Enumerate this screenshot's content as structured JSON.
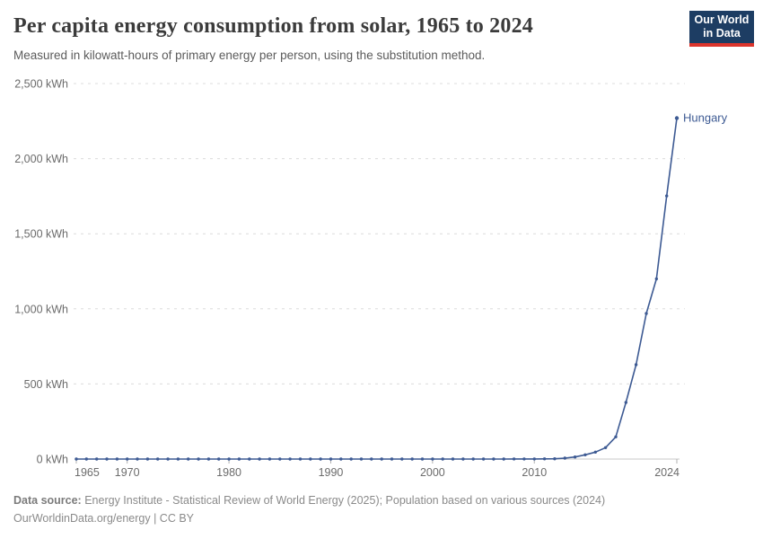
{
  "header": {
    "title": "Per capita energy consumption from solar, 1965 to 2024",
    "subtitle": "Measured in kilowatt-hours of primary energy per person, using the substitution method.",
    "logo": {
      "line1": "Our World",
      "line2": "in Data"
    }
  },
  "chart_data": {
    "type": "line",
    "title": "Per capita energy consumption from solar, 1965 to 2024",
    "xlabel": "",
    "ylabel": "",
    "xlim": [
      1965,
      2024
    ],
    "ylim": [
      0,
      2500
    ],
    "grid": "horizontal-dashed",
    "legend_position": "end-of-line-label",
    "x_ticks": [
      1965,
      1970,
      1980,
      1990,
      2000,
      2010,
      2024
    ],
    "x_tick_labels": [
      "1965",
      "1970",
      "1980",
      "1990",
      "2000",
      "2010",
      "2024"
    ],
    "y_ticks": [
      0,
      500,
      1000,
      1500,
      2000,
      2500
    ],
    "y_tick_labels": [
      "0 kWh",
      "500 kWh",
      "1,000 kWh",
      "1,500 kWh",
      "2,000 kWh",
      "2,500 kWh"
    ],
    "end_label": "Hungary",
    "series": [
      {
        "name": "Hungary",
        "color": "#3d5a93",
        "x": [
          1965,
          1966,
          1967,
          1968,
          1969,
          1970,
          1971,
          1972,
          1973,
          1974,
          1975,
          1976,
          1977,
          1978,
          1979,
          1980,
          1981,
          1982,
          1983,
          1984,
          1985,
          1986,
          1987,
          1988,
          1989,
          1990,
          1991,
          1992,
          1993,
          1994,
          1995,
          1996,
          1997,
          1998,
          1999,
          2000,
          2001,
          2002,
          2003,
          2004,
          2005,
          2006,
          2007,
          2008,
          2009,
          2010,
          2011,
          2012,
          2013,
          2014,
          2015,
          2016,
          2017,
          2018,
          2019,
          2020,
          2021,
          2022,
          2023,
          2024
        ],
        "values": [
          0,
          0,
          0,
          0,
          0,
          0,
          0,
          0,
          0,
          0,
          0,
          0,
          0,
          0,
          0,
          0,
          0,
          0,
          0,
          0,
          0,
          0,
          0,
          0,
          0,
          0,
          0,
          0,
          0,
          0,
          0,
          0,
          0,
          0,
          0,
          0,
          0,
          0,
          0,
          0,
          0.1,
          0.1,
          0.2,
          0.3,
          0.4,
          0.6,
          1,
          2,
          6,
          14,
          28,
          46,
          76,
          148,
          377,
          628,
          969,
          1200,
          1752,
          2270
        ]
      }
    ]
  },
  "footer": {
    "source_label": "Data source:",
    "source_text": "Energy Institute - Statistical Review of World Energy (2025); Population based on various sources (2024)",
    "note_text": "OurWorldinData.org/energy | CC BY"
  },
  "colors": {
    "line": "#3d5a93",
    "grid": "#dcdcdc",
    "axis": "#c8c8c8",
    "tick": "#b0b0b0",
    "tick_label": "#6b6b6b",
    "title": "#3b3b3b",
    "subtitle": "#5b5b5b",
    "logo_bg": "#1d3d63",
    "logo_accent": "#dc352c"
  }
}
